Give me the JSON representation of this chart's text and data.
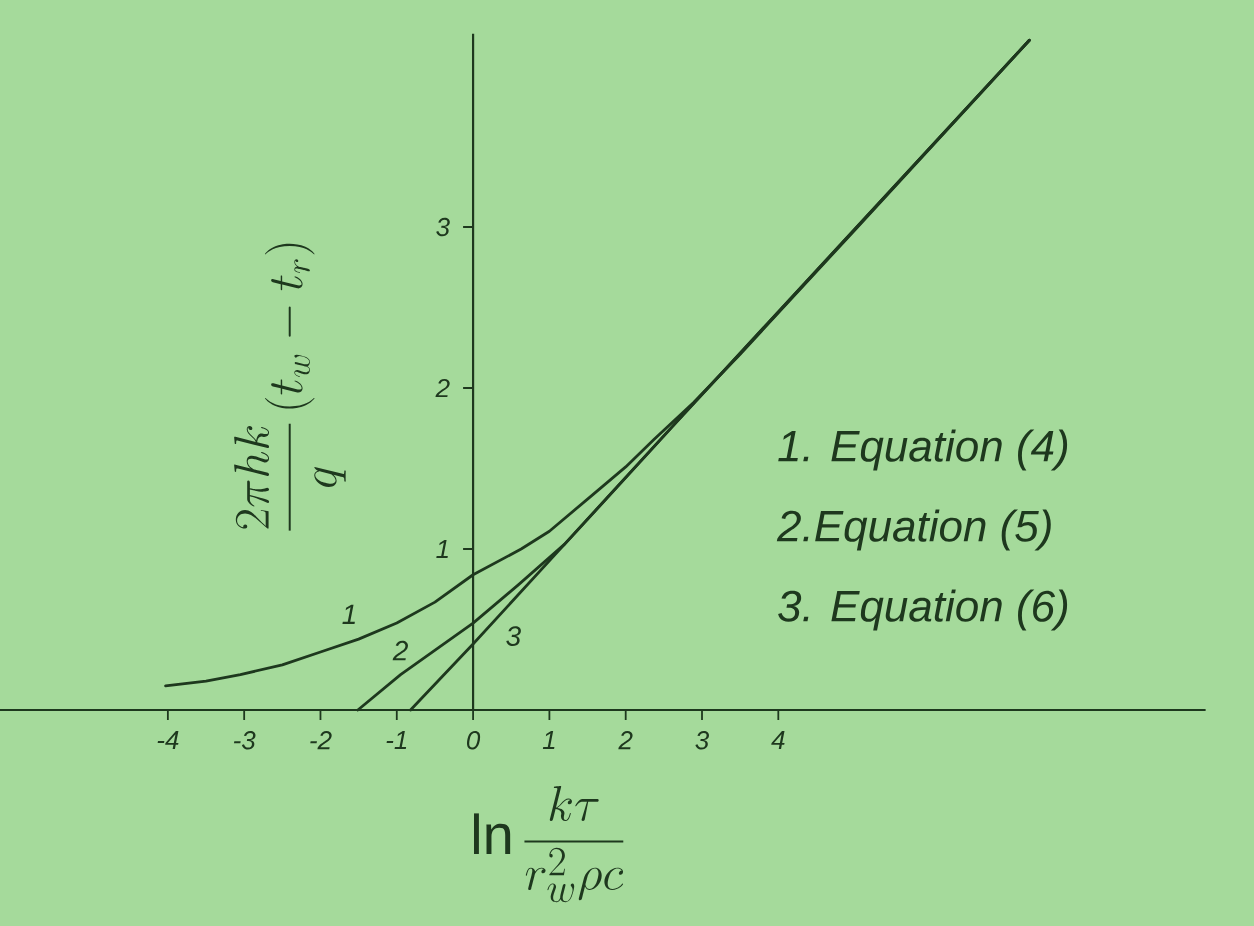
{
  "chart_data": {
    "type": "line",
    "xlabel": "\\ln \\frac{k\\tau}{r_{w}^{2}\\rho c}",
    "ylabel": "\\frac{2\\pi h k}{q}\\left(t_{w}-t_{r}\\right)",
    "xlim": [
      -6.2,
      9.6
    ],
    "ylim": [
      0,
      4.2
    ],
    "xticks": [
      -4,
      -3,
      -2,
      -1,
      0,
      1,
      2,
      3,
      4
    ],
    "yticks": [
      1,
      2,
      3
    ],
    "series": [
      {
        "name": "1",
        "color": "#1e381e",
        "x": [
          -4.03,
          -3.5,
          -3.05,
          -2.5,
          -2.0,
          -1.5,
          -1.0,
          -0.5,
          0,
          0.63,
          1.0,
          1.5,
          2.0,
          2.37,
          2.89,
          3.5,
          5,
          7.29
        ],
        "values": [
          0.15,
          0.18,
          0.22,
          0.28,
          0.36,
          0.44,
          0.54,
          0.67,
          0.84,
          1.0,
          1.11,
          1.31,
          1.51,
          1.68,
          1.91,
          2.21,
          2.98,
          4.16
        ]
      },
      {
        "name": "2",
        "color": "#1e381e",
        "x": [
          -1.51,
          -0.95,
          0,
          0.6,
          1.2,
          2.65,
          7.29
        ],
        "values": [
          0,
          0.22,
          0.54,
          0.78,
          1.03,
          1.78,
          4.16
        ]
      },
      {
        "name": "3",
        "color": "#1e381e",
        "x": [
          -0.82,
          0,
          1.2,
          2.65,
          7.29
        ],
        "values": [
          0,
          0.41,
          1.03,
          1.78,
          4.16
        ]
      }
    ],
    "annotations": [
      "1. Equation (4)",
      "2.Equation (5)",
      "3. Equation (6)"
    ]
  }
}
